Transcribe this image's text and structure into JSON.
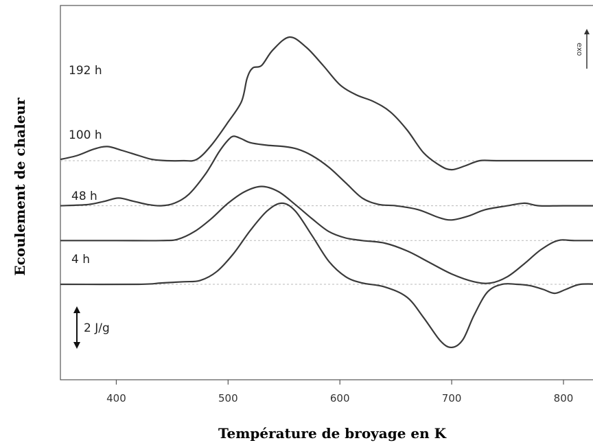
{
  "chart_data": {
    "type": "line",
    "title": "",
    "xlabel": "Température de broyage en K",
    "ylabel": "Ecoulement de chaleur",
    "xlim": [
      350,
      835
    ],
    "x_ticks": [
      400,
      500,
      600,
      700,
      800
    ],
    "scale_bar_label": "2 J/g",
    "direction_label": "exo",
    "grid": false,
    "series": [
      {
        "name": "192 h",
        "baseline_offset": 4.8,
        "points": [
          [
            350,
            0.05
          ],
          [
            365,
            0.2
          ],
          [
            380,
            0.45
          ],
          [
            392,
            0.55
          ],
          [
            405,
            0.4
          ],
          [
            420,
            0.2
          ],
          [
            432,
            0.05
          ],
          [
            445,
            0.0
          ],
          [
            460,
            0.0
          ],
          [
            472,
            0.05
          ],
          [
            485,
            0.6
          ],
          [
            500,
            1.5
          ],
          [
            512,
            2.3
          ],
          [
            517,
            3.2
          ],
          [
            522,
            3.6
          ],
          [
            530,
            3.7
          ],
          [
            540,
            4.3
          ],
          [
            555,
            4.8
          ],
          [
            570,
            4.4
          ],
          [
            585,
            3.7
          ],
          [
            600,
            2.95
          ],
          [
            615,
            2.55
          ],
          [
            630,
            2.3
          ],
          [
            645,
            1.9
          ],
          [
            660,
            1.2
          ],
          [
            675,
            0.3
          ],
          [
            690,
            -0.2
          ],
          [
            700,
            -0.35
          ],
          [
            712,
            -0.2
          ],
          [
            725,
            0.0
          ],
          [
            740,
            0.0
          ],
          [
            780,
            0.0
          ],
          [
            835,
            0.0
          ]
        ]
      },
      {
        "name": "100 h",
        "baseline_offset": 3.05,
        "points": [
          [
            350,
            0.0
          ],
          [
            375,
            0.05
          ],
          [
            390,
            0.18
          ],
          [
            402,
            0.3
          ],
          [
            415,
            0.18
          ],
          [
            428,
            0.05
          ],
          [
            440,
            0.0
          ],
          [
            452,
            0.1
          ],
          [
            465,
            0.45
          ],
          [
            480,
            1.25
          ],
          [
            492,
            2.1
          ],
          [
            500,
            2.55
          ],
          [
            505,
            2.7
          ],
          [
            512,
            2.6
          ],
          [
            520,
            2.45
          ],
          [
            535,
            2.35
          ],
          [
            550,
            2.3
          ],
          [
            562,
            2.2
          ],
          [
            575,
            1.95
          ],
          [
            590,
            1.5
          ],
          [
            605,
            0.9
          ],
          [
            620,
            0.3
          ],
          [
            635,
            0.05
          ],
          [
            650,
            0.0
          ],
          [
            670,
            -0.15
          ],
          [
            688,
            -0.45
          ],
          [
            700,
            -0.55
          ],
          [
            715,
            -0.4
          ],
          [
            730,
            -0.15
          ],
          [
            750,
            0.0
          ],
          [
            765,
            0.1
          ],
          [
            778,
            0.0
          ],
          [
            800,
            0.0
          ],
          [
            835,
            0.0
          ]
        ]
      },
      {
        "name": "48 h",
        "baseline_offset": 1.7,
        "points": [
          [
            350,
            0.0
          ],
          [
            400,
            0.0
          ],
          [
            440,
            0.0
          ],
          [
            455,
            0.05
          ],
          [
            470,
            0.35
          ],
          [
            485,
            0.85
          ],
          [
            500,
            1.45
          ],
          [
            515,
            1.9
          ],
          [
            530,
            2.1
          ],
          [
            545,
            1.9
          ],
          [
            560,
            1.4
          ],
          [
            575,
            0.85
          ],
          [
            590,
            0.35
          ],
          [
            605,
            0.1
          ],
          [
            620,
            0.0
          ],
          [
            640,
            -0.1
          ],
          [
            660,
            -0.4
          ],
          [
            680,
            -0.85
          ],
          [
            700,
            -1.3
          ],
          [
            720,
            -1.6
          ],
          [
            735,
            -1.65
          ],
          [
            750,
            -1.4
          ],
          [
            765,
            -0.9
          ],
          [
            780,
            -0.35
          ],
          [
            795,
            0.0
          ],
          [
            810,
            0.0
          ],
          [
            835,
            0.0
          ]
        ]
      },
      {
        "name": "4 h",
        "baseline_offset": 0.0,
        "points": [
          [
            350,
            0.0
          ],
          [
            420,
            0.0
          ],
          [
            440,
            0.05
          ],
          [
            460,
            0.1
          ],
          [
            475,
            0.15
          ],
          [
            490,
            0.5
          ],
          [
            505,
            1.2
          ],
          [
            520,
            2.1
          ],
          [
            535,
            2.85
          ],
          [
            548,
            3.15
          ],
          [
            560,
            2.85
          ],
          [
            575,
            1.9
          ],
          [
            590,
            0.9
          ],
          [
            605,
            0.3
          ],
          [
            620,
            0.05
          ],
          [
            640,
            -0.1
          ],
          [
            660,
            -0.5
          ],
          [
            675,
            -1.3
          ],
          [
            690,
            -2.2
          ],
          [
            700,
            -2.45
          ],
          [
            710,
            -2.15
          ],
          [
            720,
            -1.2
          ],
          [
            732,
            -0.3
          ],
          [
            745,
            0.0
          ],
          [
            758,
            0.0
          ],
          [
            770,
            -0.05
          ],
          [
            782,
            -0.2
          ],
          [
            792,
            -0.35
          ],
          [
            802,
            -0.2
          ],
          [
            815,
            0.0
          ],
          [
            835,
            0.0
          ]
        ]
      }
    ]
  }
}
